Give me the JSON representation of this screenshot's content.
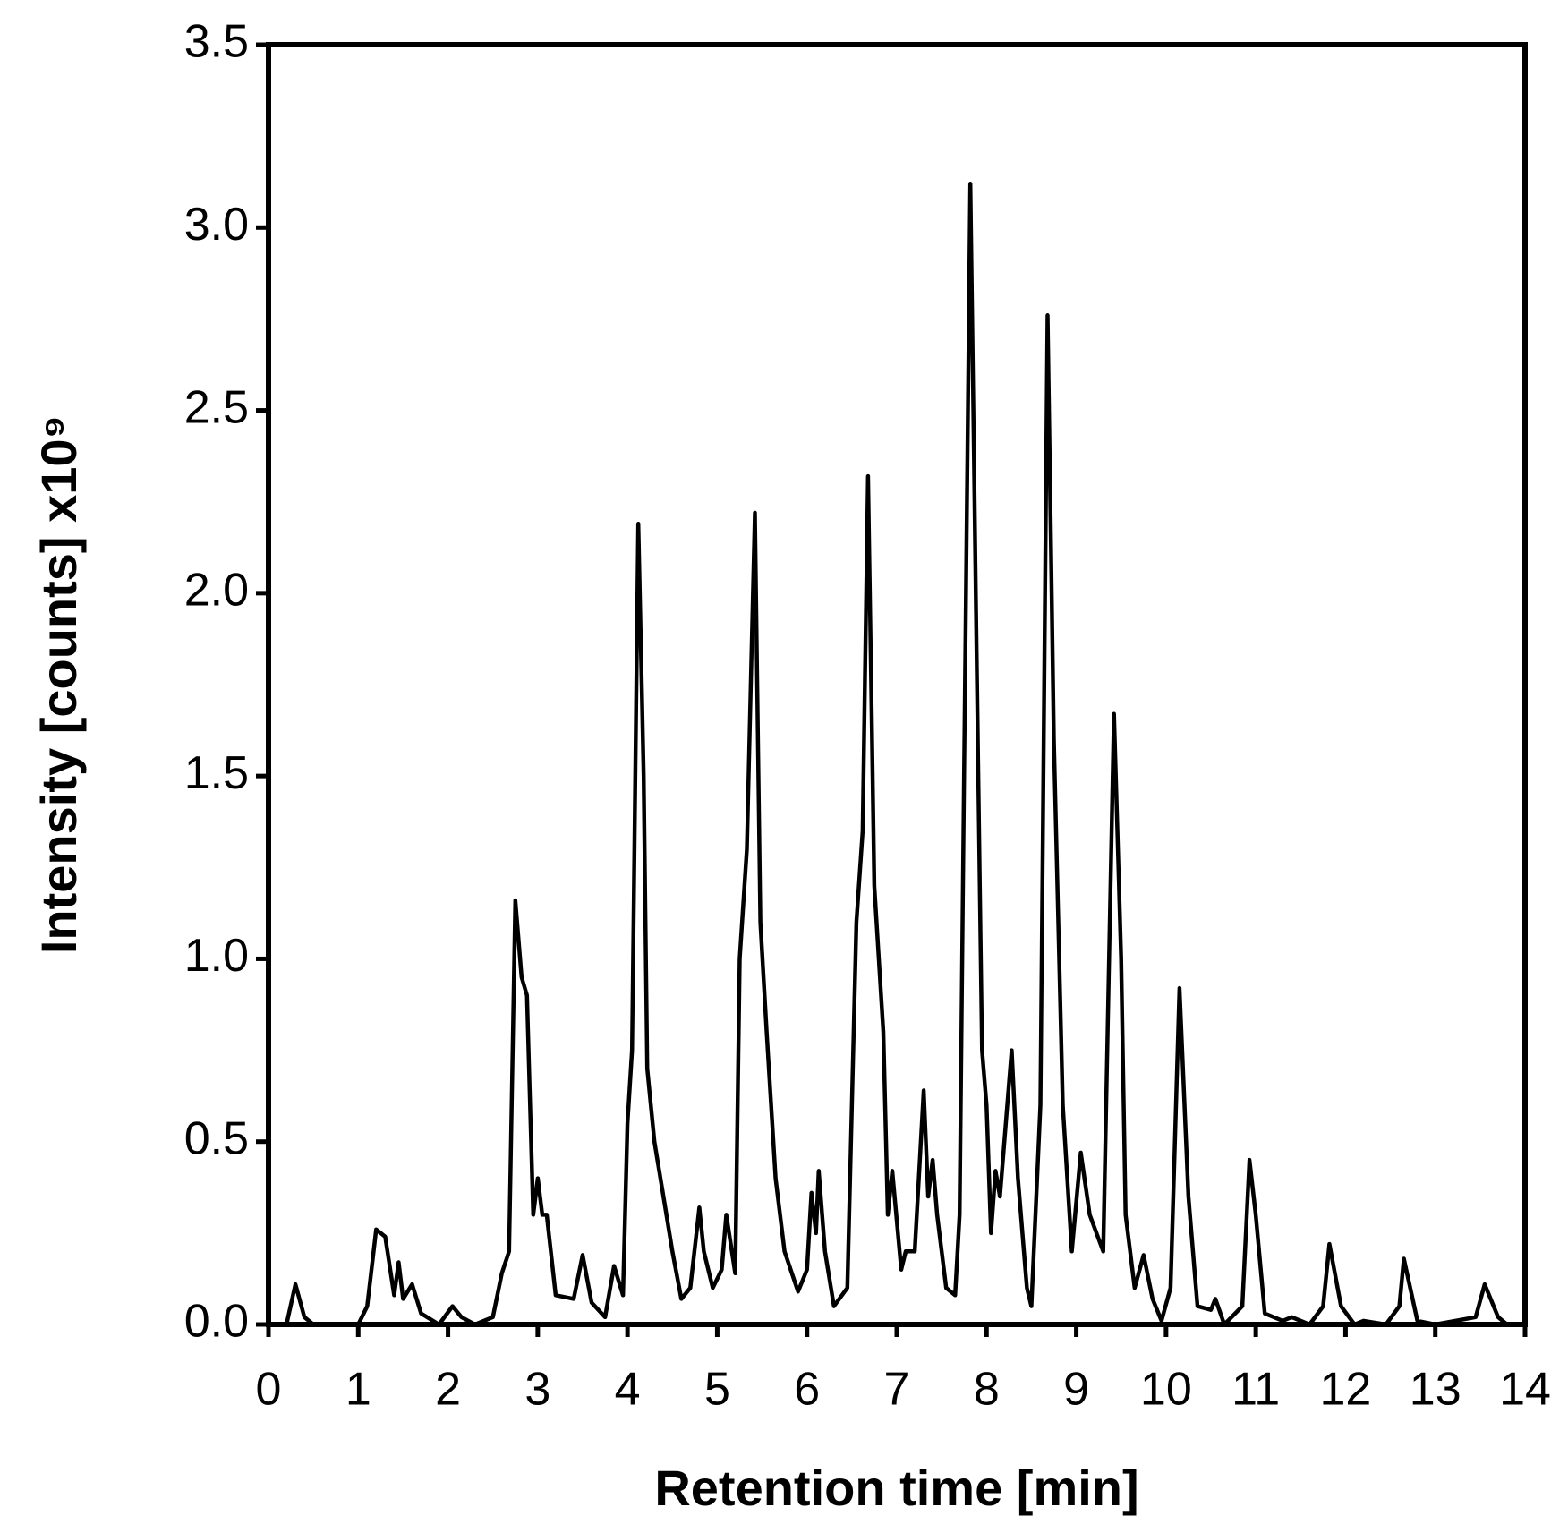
{
  "chart_data": {
    "type": "line",
    "xlabel": "Retention time [min]",
    "ylabel": "Intensity [counts] x10⁹",
    "color": "#000000",
    "grid": false,
    "xlim": [
      0,
      14
    ],
    "xticks": [
      0,
      1,
      2,
      3,
      4,
      5,
      6,
      7,
      8,
      9,
      10,
      11,
      12,
      13,
      14
    ],
    "ylim": [
      0,
      3.5
    ],
    "yticks": [
      {
        "value": 0,
        "label": "0.0"
      },
      0.5,
      {
        "value": 1,
        "label": "1.0"
      },
      1.5,
      {
        "value": 2,
        "label": "2.0"
      },
      2.5,
      {
        "value": 3,
        "label": "3.0"
      },
      3.5
    ],
    "x": [
      0,
      0.2,
      0.3,
      0.4,
      0.5,
      1.0,
      1.1,
      1.2,
      1.3,
      1.4,
      1.45,
      1.5,
      1.6,
      1.7,
      1.9,
      2.05,
      2.15,
      2.3,
      2.5,
      2.6,
      2.68,
      2.75,
      2.82,
      2.88,
      2.95,
      3.0,
      3.05,
      3.1,
      3.2,
      3.4,
      3.5,
      3.6,
      3.75,
      3.85,
      3.95,
      4.0,
      4.05,
      4.12,
      4.18,
      4.22,
      4.3,
      4.4,
      4.5,
      4.6,
      4.7,
      4.8,
      4.85,
      4.95,
      5.05,
      5.1,
      5.2,
      5.25,
      5.33,
      5.42,
      5.48,
      5.55,
      5.65,
      5.75,
      5.9,
      6.0,
      6.05,
      6.1,
      6.13,
      6.2,
      6.3,
      6.45,
      6.55,
      6.62,
      6.68,
      6.75,
      6.85,
      6.9,
      6.95,
      7.05,
      7.1,
      7.2,
      7.3,
      7.35,
      7.4,
      7.45,
      7.55,
      7.65,
      7.7,
      7.75,
      7.82,
      7.88,
      7.95,
      8.0,
      8.05,
      8.1,
      8.15,
      8.28,
      8.35,
      8.45,
      8.5,
      8.6,
      8.68,
      8.75,
      8.85,
      8.95,
      9.05,
      9.15,
      9.3,
      9.42,
      9.5,
      9.55,
      9.65,
      9.75,
      9.85,
      9.95,
      10.05,
      10.15,
      10.25,
      10.35,
      10.5,
      10.55,
      10.65,
      10.85,
      10.93,
      11.0,
      11.1,
      11.3,
      11.4,
      11.6,
      11.75,
      11.82,
      11.95,
      12.1,
      12.2,
      12.45,
      12.6,
      12.65,
      12.8,
      13.0,
      13.45,
      13.55,
      13.7,
      13.8,
      14.0
    ],
    "values": [
      0,
      0,
      0.11,
      0.02,
      0,
      0,
      0.05,
      0.26,
      0.24,
      0.08,
      0.17,
      0.07,
      0.11,
      0.03,
      0,
      0.05,
      0.02,
      0,
      0.02,
      0.14,
      0.2,
      1.16,
      0.95,
      0.9,
      0.3,
      0.4,
      0.3,
      0.3,
      0.08,
      0.07,
      0.19,
      0.06,
      0.02,
      0.16,
      0.08,
      0.55,
      0.75,
      2.19,
      1.5,
      0.7,
      0.5,
      0.35,
      0.2,
      0.07,
      0.1,
      0.32,
      0.2,
      0.1,
      0.15,
      0.3,
      0.14,
      1.0,
      1.3,
      2.22,
      1.1,
      0.8,
      0.4,
      0.2,
      0.09,
      0.15,
      0.36,
      0.25,
      0.42,
      0.2,
      0.05,
      0.1,
      1.1,
      1.35,
      2.32,
      1.2,
      0.8,
      0.3,
      0.42,
      0.15,
      0.2,
      0.2,
      0.64,
      0.35,
      0.45,
      0.3,
      0.1,
      0.08,
      0.3,
      1.5,
      3.12,
      2.0,
      0.75,
      0.6,
      0.25,
      0.42,
      0.35,
      0.75,
      0.4,
      0.1,
      0.05,
      0.6,
      2.76,
      1.6,
      0.6,
      0.2,
      0.47,
      0.3,
      0.2,
      1.67,
      1.0,
      0.3,
      0.1,
      0.19,
      0.07,
      0.01,
      0.1,
      0.92,
      0.35,
      0.05,
      0.04,
      0.07,
      0,
      0.05,
      0.45,
      0.3,
      0.03,
      0.01,
      0.02,
      0,
      0.05,
      0.22,
      0.05,
      0,
      0.01,
      0,
      0.05,
      0.18,
      0.01,
      0,
      0.02,
      0.11,
      0.02,
      0,
      0
    ]
  }
}
